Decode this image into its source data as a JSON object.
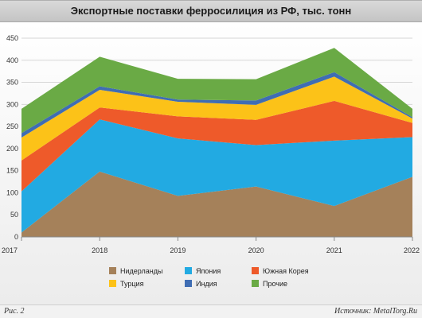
{
  "chart_data": {
    "type": "area",
    "stacked": true,
    "title": "Экспортные поставки ферросилиция из РФ, тыс. тонн",
    "x": [
      "2017",
      "2018",
      "2019",
      "2020",
      "2021",
      "2022"
    ],
    "ylim": [
      0,
      450
    ],
    "yticks": [
      0,
      50,
      100,
      150,
      200,
      250,
      300,
      350,
      400,
      450
    ],
    "grid": true,
    "legend_position": "bottom",
    "series": [
      {
        "name": "Нидерланды",
        "color": "#a5815a",
        "values": [
          10,
          148,
          93,
          114,
          70,
          136
        ]
      },
      {
        "name": "Япония",
        "color": "#22aae2",
        "values": [
          93,
          118,
          130,
          94,
          148,
          90
        ]
      },
      {
        "name": "Южная Корея",
        "color": "#ee5a2a",
        "values": [
          70,
          27,
          50,
          57,
          90,
          32
        ]
      },
      {
        "name": "Турция",
        "color": "#fcc218",
        "values": [
          52,
          40,
          33,
          34,
          55,
          10
        ]
      },
      {
        "name": "Индия",
        "color": "#3f6db3",
        "values": [
          10,
          8,
          5,
          10,
          10,
          3
        ]
      },
      {
        "name": "Прочие",
        "color": "#6aaa45",
        "values": [
          55,
          67,
          47,
          48,
          55,
          19
        ]
      }
    ]
  },
  "footer": {
    "figure_label": "Рис. 2",
    "source": "Источник: MetalTorg.Ru"
  }
}
